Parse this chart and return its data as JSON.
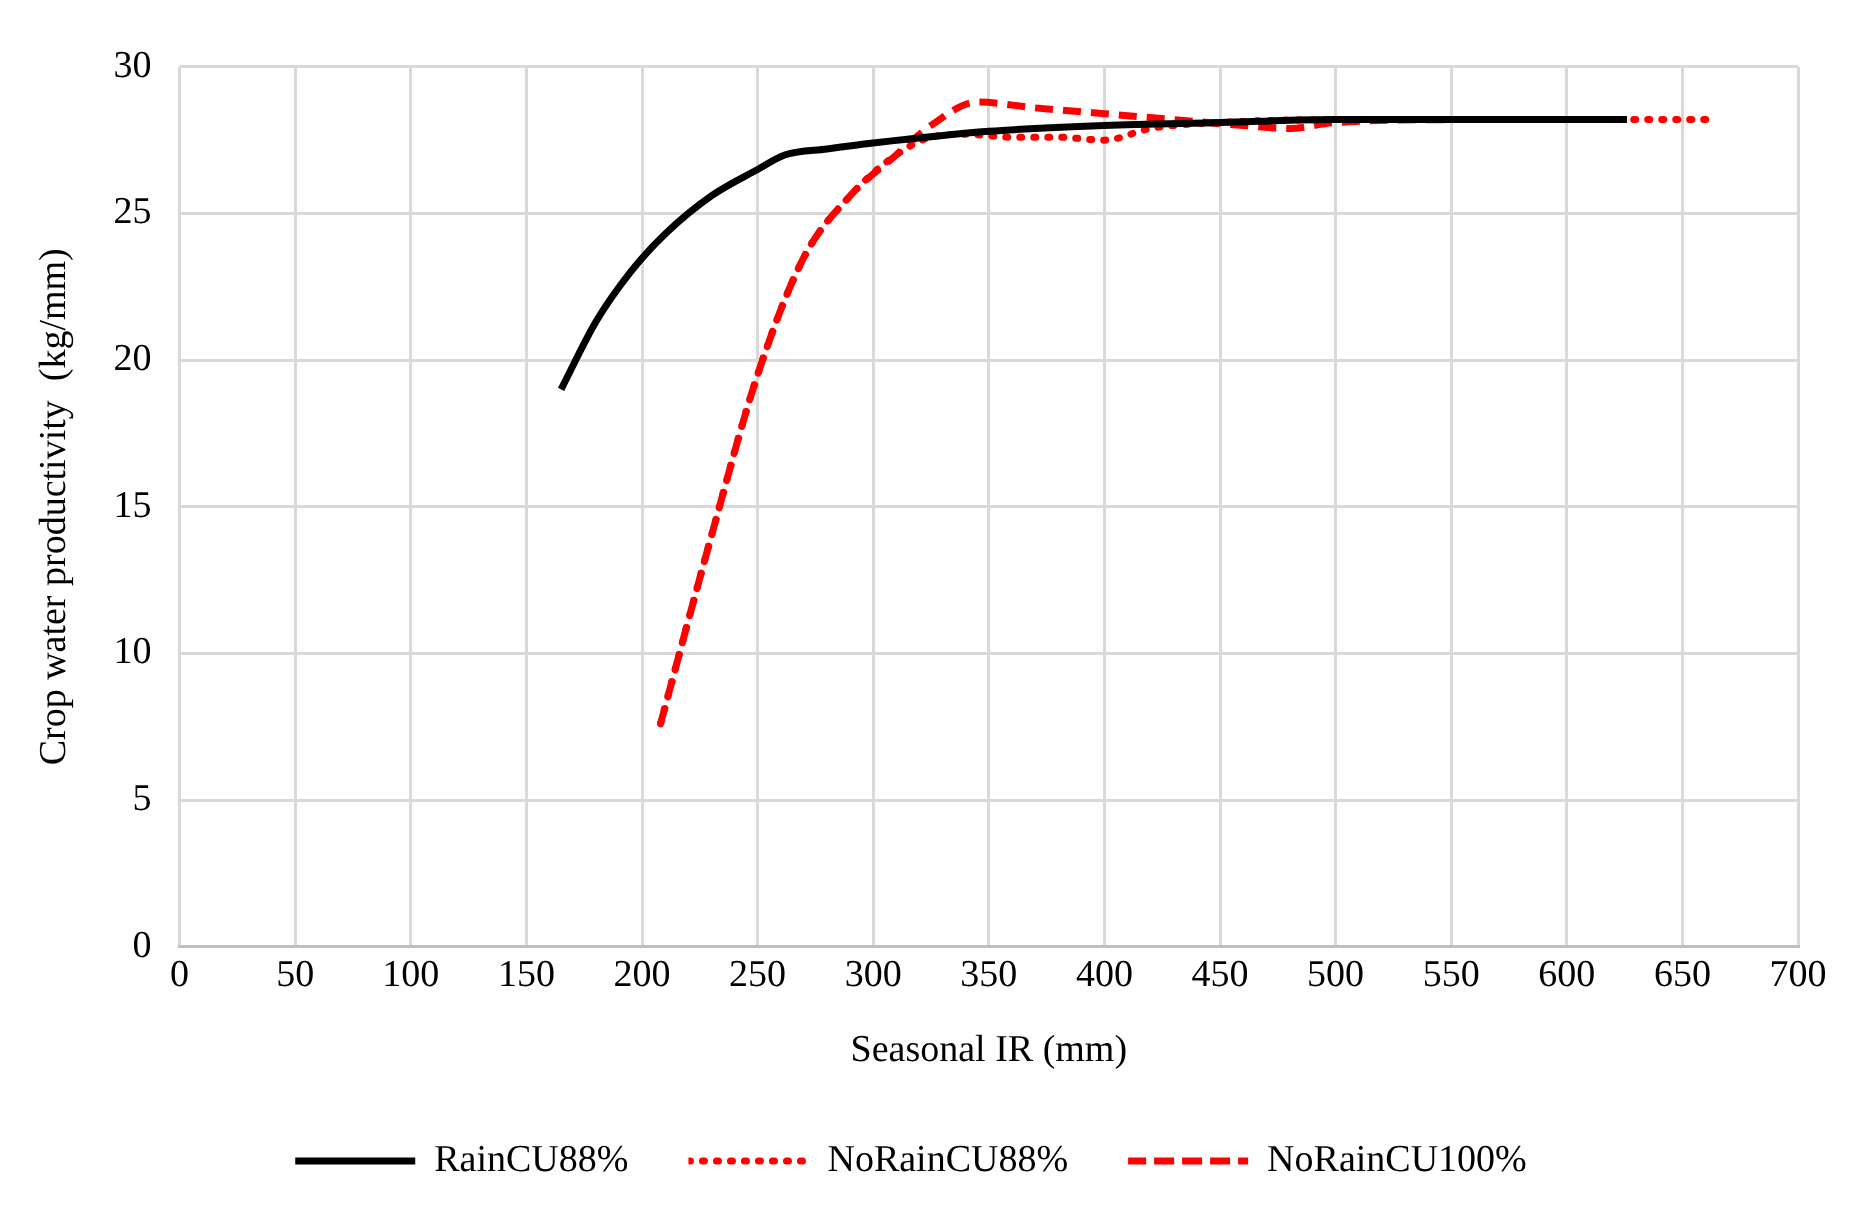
{
  "chart_data": {
    "type": "line",
    "xlabel": "Seasonal IR (mm)",
    "ylabel": "Crop water productivity  (kg/mm)",
    "xlim": [
      0,
      700
    ],
    "xticks": [
      0,
      50,
      100,
      150,
      200,
      250,
      300,
      350,
      400,
      450,
      500,
      550,
      600,
      650,
      700
    ],
    "ylim": [
      0,
      30
    ],
    "yticks": [
      0,
      5,
      10,
      15,
      20,
      25,
      30
    ],
    "grid": true,
    "legend": "bottom",
    "marker": "none",
    "series": [
      {
        "name": "RainCU88%",
        "color": "#000000",
        "line_style": "solid",
        "x": [
          165,
          180,
          195,
          210,
          230,
          250,
          262,
          280,
          300,
          350,
          400,
          450,
          500,
          560,
          626
        ],
        "values": [
          19,
          21.3,
          23,
          24.3,
          25.6,
          26.5,
          27,
          27.2,
          27.4,
          27.8,
          28,
          28.1,
          28.2,
          28.2,
          28.2
        ]
      },
      {
        "name": "NoRainCU88%",
        "color": "#ff0000",
        "line_style": "dotted",
        "x": [
          208,
          230,
          250,
          270,
          290,
          310,
          325,
          340,
          360,
          380,
          400,
          420,
          450,
          500,
          560,
          620,
          665
        ],
        "values": [
          7.6,
          14,
          19.5,
          23.5,
          25.6,
          27,
          27.6,
          27.7,
          27.6,
          27.6,
          27.5,
          27.9,
          28.1,
          28.2,
          28.2,
          28.2,
          28.2
        ]
      },
      {
        "name": "NoRainCU100%",
        "color": "#ff0000",
        "line_style": "dashed",
        "x": [
          208,
          230,
          250,
          270,
          290,
          310,
          325,
          345,
          370,
          400,
          430,
          460,
          480,
          500,
          560,
          626
        ],
        "values": [
          7.6,
          14,
          19.5,
          23.5,
          25.6,
          27,
          28,
          28.8,
          28.6,
          28.4,
          28.2,
          28,
          27.9,
          28.1,
          28.2,
          28.2
        ]
      }
    ]
  }
}
